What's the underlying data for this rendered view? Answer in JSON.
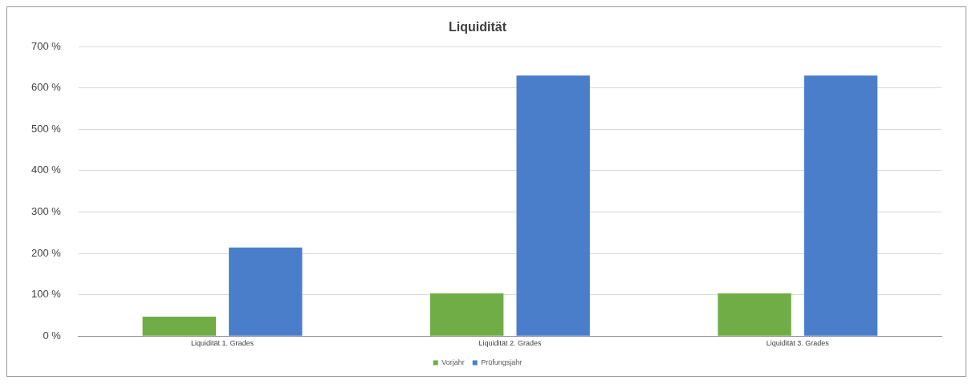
{
  "chart_data": {
    "type": "bar",
    "title": "Liquidität",
    "categories": [
      "Liquidität 1. Grades",
      "Liquidität 2. Grades",
      "Liquidität 3. Grades"
    ],
    "series": [
      {
        "name": "Vorjahr",
        "color": "#70ad47",
        "values": [
          47,
          103,
          103
        ]
      },
      {
        "name": "Prüfungsjahr",
        "color": "#4a7ecb",
        "values": [
          214,
          630,
          630
        ]
      }
    ],
    "ylim": [
      0,
      700
    ],
    "yticks": [
      {
        "value": 0,
        "label": "0 %"
      },
      {
        "value": 100,
        "label": "100 %"
      },
      {
        "value": 200,
        "label": "200 %"
      },
      {
        "value": 300,
        "label": "300 %"
      },
      {
        "value": 400,
        "label": "400 %"
      },
      {
        "value": 500,
        "label": "500 %"
      },
      {
        "value": 600,
        "label": "600 %"
      },
      {
        "value": 700,
        "label": "700 %"
      }
    ],
    "grid": "y",
    "legend": "bottom"
  }
}
